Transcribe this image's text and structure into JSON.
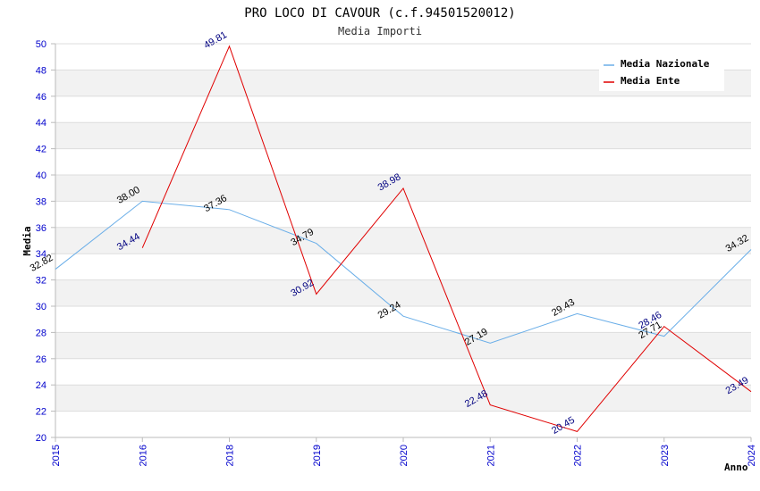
{
  "chart_data": {
    "type": "line",
    "title": "PRO LOCO DI CAVOUR (c.f.94501520012)",
    "subtitle": "Media Importi",
    "xlabel": "Anno",
    "ylabel": "Media",
    "categories": [
      "2015",
      "2016",
      "2018",
      "2019",
      "2020",
      "2021",
      "2022",
      "2023",
      "2024"
    ],
    "ylim": [
      20,
      50
    ],
    "yticks": [
      20,
      22,
      24,
      26,
      28,
      30,
      32,
      34,
      36,
      38,
      40,
      42,
      44,
      46,
      48,
      50
    ],
    "grid": true,
    "legend_position": "top-right",
    "series": [
      {
        "name": "Media Nazionale",
        "color": "#6aaee8",
        "values": [
          32.82,
          38.0,
          37.36,
          34.79,
          29.24,
          27.19,
          29.43,
          27.71,
          34.32
        ],
        "labels": [
          "32.82",
          "38.00",
          "37.36",
          "34.79",
          "29.24",
          "27.19",
          "29.43",
          "27.71",
          "34.32"
        ]
      },
      {
        "name": "Media Ente",
        "color": "#e00000",
        "values": [
          null,
          34.44,
          49.81,
          30.92,
          38.98,
          22.48,
          20.45,
          28.46,
          23.49
        ],
        "labels": [
          null,
          "34.44",
          "49.81",
          "30.92",
          "38.98",
          "22.48",
          "20.45",
          "28.46",
          "23.49"
        ]
      }
    ]
  }
}
